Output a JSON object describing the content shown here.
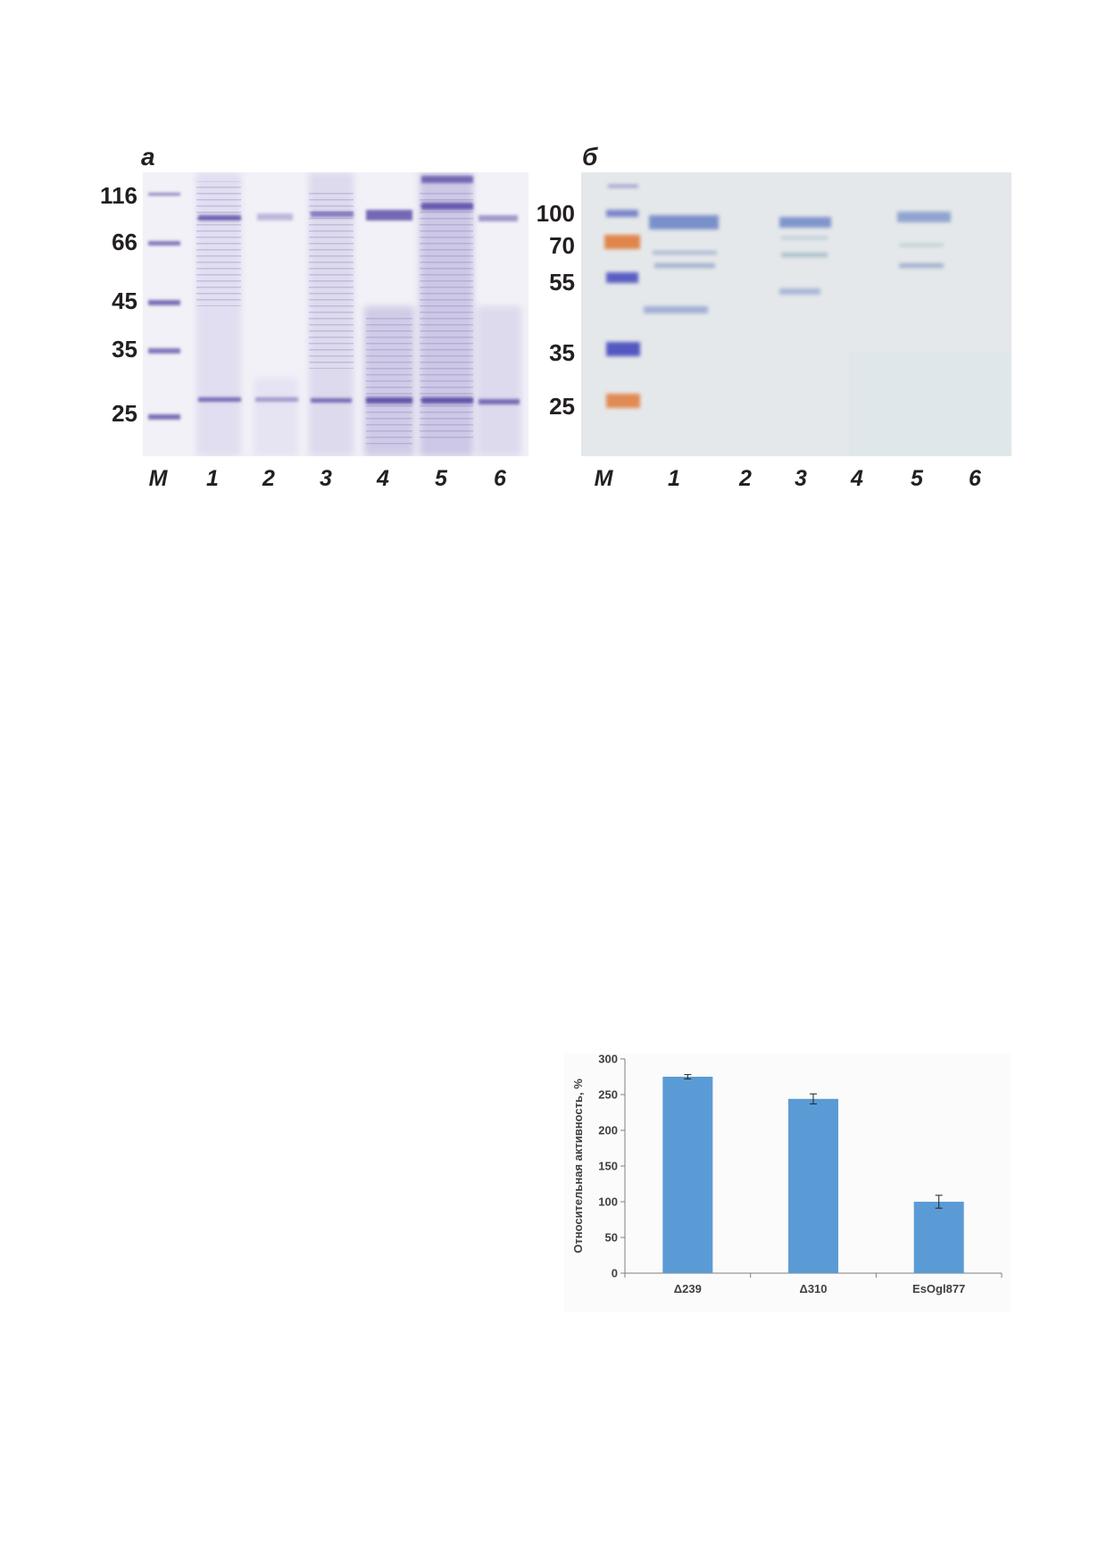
{
  "figure_gels": {
    "panel_a": {
      "letter": "а",
      "markers": [
        "116",
        "66",
        "45",
        "35",
        "25"
      ],
      "lanes": [
        "M",
        "1",
        "2",
        "3",
        "4",
        "5",
        "6"
      ]
    },
    "panel_b": {
      "letter": "б",
      "markers": [
        "100",
        "70",
        "55",
        "35",
        "25"
      ],
      "lanes": [
        "M",
        "1",
        "2",
        "3",
        "4",
        "5",
        "6"
      ]
    }
  },
  "chart_data": {
    "type": "bar",
    "categories": [
      "Δ239",
      "Δ310",
      "EsOgl877"
    ],
    "values": [
      275,
      244,
      100
    ],
    "errors": [
      3,
      7,
      9
    ],
    "title": "",
    "xlabel": "",
    "ylabel": "Относительная активность, %",
    "ylim": [
      0,
      300
    ],
    "yticks": [
      0,
      50,
      100,
      150,
      200,
      250,
      300
    ],
    "grid": false,
    "colors": {
      "bar": "#5b9bd5",
      "axis": "#7f7f7f"
    }
  }
}
